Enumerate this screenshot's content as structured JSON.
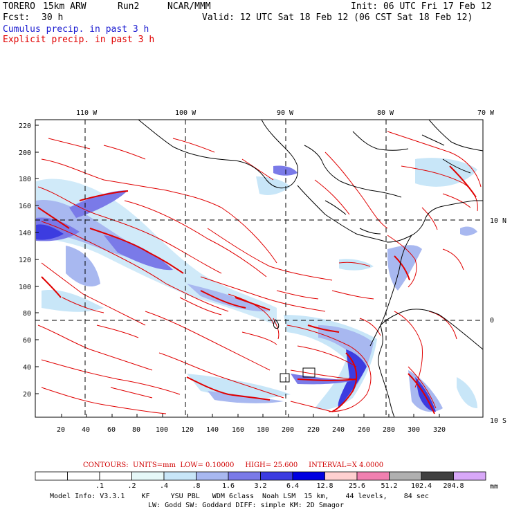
{
  "header": {
    "model": "TORERO",
    "resolution": "15km ARW",
    "run": "Run2",
    "org": "NCAR/MMM",
    "init": "Init: 06 UTC Fri 17 Feb 12",
    "fcst_label": "Fcst:",
    "fcst_value": "30 h",
    "valid": "Valid: 12 UTC Sat 18 Feb 12 (06 CST Sat 18 Feb 12)",
    "field1": "Cumulus precip. in past 3 h",
    "field2": "Explicit precip. in past 3 h"
  },
  "map": {
    "top_labels": [
      "110 W",
      "100 W",
      "90 W",
      "80 W",
      "70 W"
    ],
    "right_labels": [
      "10 N",
      "0",
      "10 S"
    ],
    "y_ticks": [
      "220",
      "200",
      "180",
      "160",
      "140",
      "120",
      "100",
      "80",
      "60",
      "40",
      "20"
    ],
    "x_ticks": [
      "20",
      "40",
      "60",
      "80",
      "100",
      "120",
      "140",
      "160",
      "180",
      "200",
      "220",
      "240",
      "260",
      "280",
      "300",
      "320"
    ],
    "colors": {
      "explicit_contour": "#e00000",
      "coast": "#000000",
      "grid": "#000000"
    }
  },
  "contours": {
    "label": "CONTOURS:",
    "units": "UNITS=mm",
    "low": "LOW= 0.10000",
    "high": "HIGH= 25.600",
    "interval": "INTERVAL=X 4.0000"
  },
  "colorbar": {
    "unit": "mm",
    "labels": [
      ".1",
      ".2",
      ".4",
      ".8",
      "1.6",
      "3.2",
      "6.4",
      "12.8",
      "25.6",
      "51.2",
      "102.4",
      "204.8"
    ],
    "colors": [
      "#ffffff",
      "#ffffff",
      "#ffffff",
      "#e6f8f8",
      "#c8e6f8",
      "#a8b8f0",
      "#7a7ae8",
      "#3c3ce0",
      "#0000e0",
      "#ffd0d0",
      "#f080b0",
      "#b0b0b0",
      "#404040",
      "#d8a8f8"
    ]
  },
  "model_info": {
    "line1": "Model Info: V3.3.1    KF     YSU PBL   WDM 6class  Noah LSM  15 km,    44 levels,    84 sec",
    "line2": "LW: Godd SW: Goddard DIFF: simple KM: 2D Smagor"
  }
}
